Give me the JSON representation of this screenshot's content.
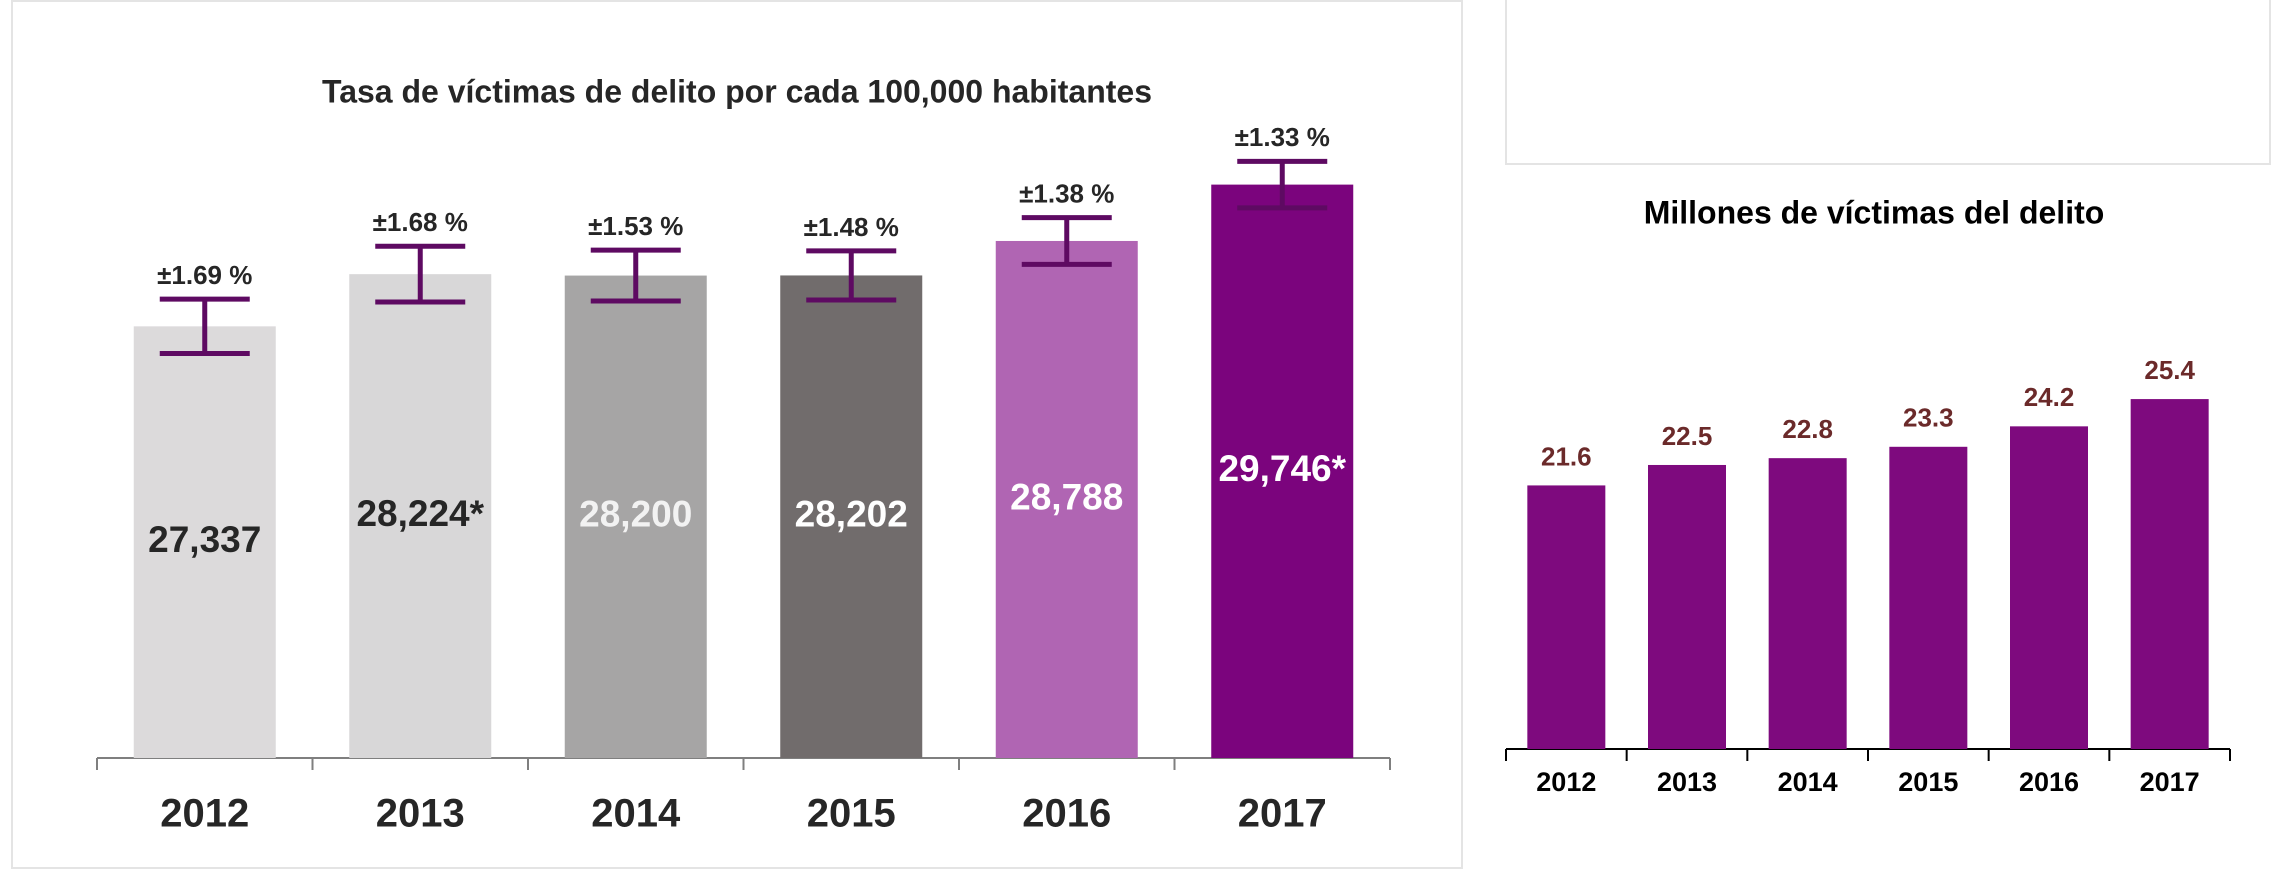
{
  "chart_data": [
    {
      "type": "bar",
      "title": "Tasa de víctimas de delito por cada 100,000 habitantes",
      "categories": [
        "2012",
        "2013",
        "2014",
        "2015",
        "2016",
        "2017"
      ],
      "values": [
        27337,
        28224,
        28200,
        28202,
        28788,
        29746
      ],
      "value_labels": [
        "27,337",
        "28,224*",
        "28,200",
        "28,202",
        "28,788",
        "29,746*"
      ],
      "errors": [
        1.69,
        1.68,
        1.53,
        1.48,
        1.38,
        1.33
      ],
      "error_labels": [
        "±1.69 %",
        "±1.68 %",
        "±1.53 %",
        "±1.48 %",
        "±1.38 %",
        "±1.33 %"
      ],
      "colors": [
        "#dcdadb",
        "#d8d7d8",
        "#a6a5a5",
        "#716c6c",
        "#b065b3",
        "#7b047d"
      ],
      "label_colors": [
        "#262626",
        "#262626",
        "#f2f2f2",
        "#ffffff",
        "#ffffff",
        "#ffffff"
      ],
      "error_color": "#5e0a62",
      "ylim": [
        20000,
        32000
      ]
    },
    {
      "type": "bar",
      "title": "Millones de víctimas del delito",
      "categories": [
        "2012",
        "2013",
        "2014",
        "2015",
        "2016",
        "2017"
      ],
      "values": [
        21.6,
        22.5,
        22.8,
        23.3,
        24.2,
        25.4
      ],
      "color": "#7e0a7e",
      "label_color": "#6b2a2a",
      "ylim": [
        10,
        28
      ]
    }
  ]
}
